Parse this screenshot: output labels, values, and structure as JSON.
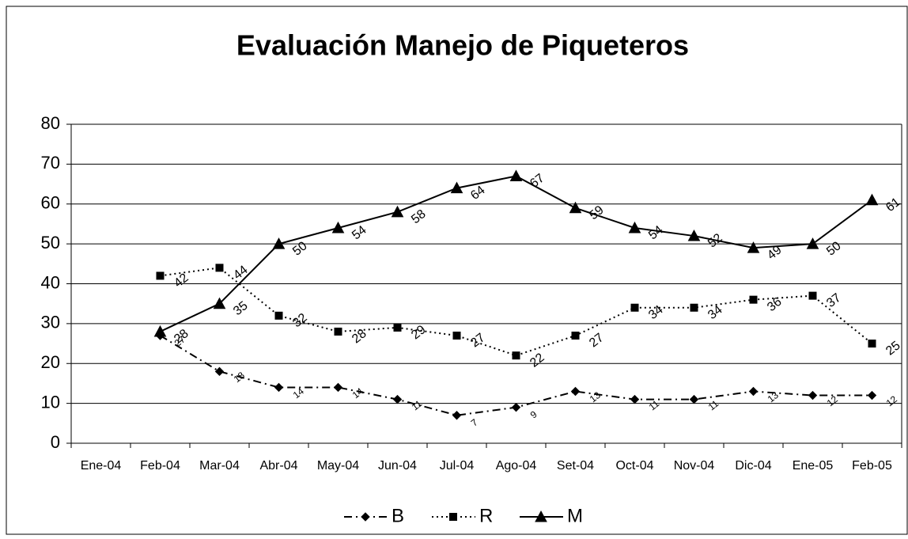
{
  "chart_data": {
    "type": "line",
    "title": "Evaluación Manejo de Piqueteros",
    "categories": [
      "Ene-04",
      "Feb-04",
      "Mar-04",
      "Abr-04",
      "May-04",
      "Jun-04",
      "Jul-04",
      "Ago-04",
      "Set-04",
      "Oct-04",
      "Nov-04",
      "Dic-04",
      "Ene-05",
      "Feb-05"
    ],
    "series": [
      {
        "name": "B",
        "color": "#000000",
        "marker": "diamond",
        "dash": "dashdot",
        "values": [
          null,
          27,
          18,
          14,
          14,
          11,
          7,
          9,
          13,
          11,
          11,
          13,
          12,
          12
        ]
      },
      {
        "name": "R",
        "color": "#000000",
        "marker": "square",
        "dash": "dotted",
        "values": [
          null,
          42,
          44,
          32,
          28,
          29,
          27,
          22,
          27,
          34,
          34,
          36,
          37,
          25
        ]
      },
      {
        "name": "M",
        "color": "#000000",
        "marker": "triangle",
        "dash": "solid",
        "values": [
          null,
          28,
          35,
          50,
          54,
          58,
          64,
          67,
          59,
          54,
          52,
          49,
          50,
          61
        ]
      }
    ],
    "ylim": [
      0,
      80
    ],
    "yticks": [
      0,
      10,
      20,
      30,
      40,
      50,
      60,
      70,
      80
    ],
    "grid": true,
    "legend": "bottom",
    "data_labels": true
  }
}
